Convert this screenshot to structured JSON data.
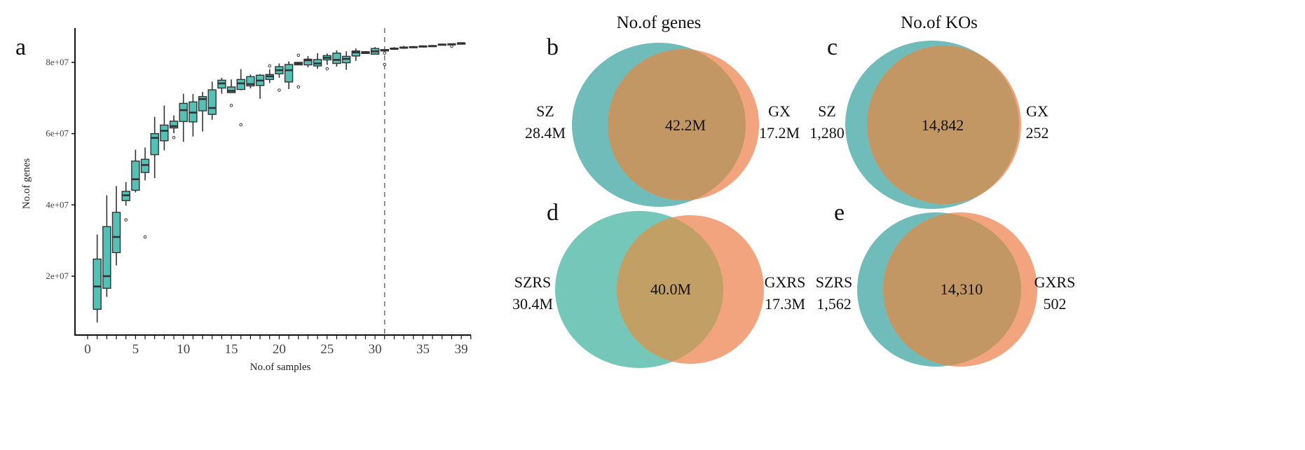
{
  "chart_data": [
    {
      "type": "boxplot",
      "panel_label": "a",
      "xlabel": "No.of samples",
      "ylabel": "No.of genes",
      "x_ticks": [
        0,
        5,
        10,
        15,
        20,
        25,
        30,
        35,
        39
      ],
      "y_ticks": [
        20000000.0,
        40000000.0,
        60000000.0,
        80000000.0
      ],
      "y_tick_labels": [
        "2e+07",
        "4e+07",
        "6e+07",
        "8e+07"
      ],
      "xlim": [
        -0.5,
        40
      ],
      "ylim": [
        0,
        89000000.0
      ],
      "vline_x": 31,
      "vline_style": "dashed",
      "box_color": "#55c1b6",
      "grid": false,
      "boxes": [
        {
          "x": 1,
          "low": 7000000.0,
          "q1": 10700000.0,
          "median": 17100000.0,
          "q3": 24800000.0,
          "high": 31700000.0,
          "outliers": []
        },
        {
          "x": 2,
          "low": 14200000.0,
          "q1": 16600000.0,
          "median": 20000000.0,
          "q3": 33900000.0,
          "high": 42700000.0,
          "outliers": []
        },
        {
          "x": 3,
          "low": 23000000.0,
          "q1": 26600000.0,
          "median": 31000000.0,
          "q3": 37900000.0,
          "high": 45300000.0,
          "outliers": []
        },
        {
          "x": 4,
          "low": 39800000.0,
          "q1": 41200000.0,
          "median": 42700000.0,
          "q3": 43800000.0,
          "high": 46400000.0,
          "outliers": [
            35800000.0
          ]
        },
        {
          "x": 5,
          "low": 43500000.0,
          "q1": 44100000.0,
          "median": 47200000.0,
          "q3": 52300000.0,
          "high": 55500000.0,
          "outliers": []
        },
        {
          "x": 6,
          "low": 46900000.0,
          "q1": 49100000.0,
          "median": 51200000.0,
          "q3": 52800000.0,
          "high": 56100000.0,
          "outliers": [
            31000000.0
          ]
        },
        {
          "x": 7,
          "low": 47500000.0,
          "q1": 54100000.0,
          "median": 58800000.0,
          "q3": 60000000.0,
          "high": 64700000.0,
          "outliers": []
        },
        {
          "x": 8,
          "low": 55300000.0,
          "q1": 58000000.0,
          "median": 60800000.0,
          "q3": 62400000.0,
          "high": 67900000.0,
          "outliers": []
        },
        {
          "x": 9,
          "low": 60100000.0,
          "q1": 61600000.0,
          "median": 62100000.0,
          "q3": 63500000.0,
          "high": 65100000.0,
          "outliers": [
            58900000.0
          ]
        },
        {
          "x": 10,
          "low": 57700000.0,
          "q1": 63400000.0,
          "median": 66600000.0,
          "q3": 68500000.0,
          "high": 71200000.0,
          "outliers": []
        },
        {
          "x": 11,
          "low": 59200000.0,
          "q1": 63300000.0,
          "median": 65900000.0,
          "q3": 68900000.0,
          "high": 71100000.0,
          "outliers": []
        },
        {
          "x": 12,
          "low": 60600000.0,
          "q1": 66400000.0,
          "median": 69700000.0,
          "q3": 70400000.0,
          "high": 71700000.0,
          "outliers": []
        },
        {
          "x": 13,
          "low": 63900000.0,
          "q1": 65400000.0,
          "median": 67200000.0,
          "q3": 72300000.0,
          "high": 74600000.0,
          "outliers": []
        },
        {
          "x": 14,
          "low": 71200000.0,
          "q1": 72800000.0,
          "median": 74100000.0,
          "q3": 75000000.0,
          "high": 75700000.0,
          "outliers": []
        },
        {
          "x": 15,
          "low": 71500000.0,
          "q1": 71500000.0,
          "median": 72000000.0,
          "q3": 73100000.0,
          "high": 75200000.0,
          "outliers": [
            67900000.0
          ]
        },
        {
          "x": 16,
          "low": 72200000.0,
          "q1": 72400000.0,
          "median": 74100000.0,
          "q3": 75200000.0,
          "high": 78100000.0,
          "outliers": [
            62500000.0
          ]
        },
        {
          "x": 17,
          "low": 72700000.0,
          "q1": 73400000.0,
          "median": 73900000.0,
          "q3": 76000000.0,
          "high": 76600000.0,
          "outliers": []
        },
        {
          "x": 18,
          "low": 69800000.0,
          "q1": 73500000.0,
          "median": 74900000.0,
          "q3": 76400000.0,
          "high": 76700000.0,
          "outliers": []
        },
        {
          "x": 19,
          "low": 74200000.0,
          "q1": 75200000.0,
          "median": 76100000.0,
          "q3": 76600000.0,
          "high": 78100000.0,
          "outliers": [
            79000000.0
          ]
        },
        {
          "x": 20,
          "low": 75700000.0,
          "q1": 76800000.0,
          "median": 77800000.0,
          "q3": 78800000.0,
          "high": 79700000.0,
          "outliers": [
            72200000.0
          ]
        },
        {
          "x": 21,
          "low": 72500000.0,
          "q1": 74500000.0,
          "median": 77800000.0,
          "q3": 79400000.0,
          "high": 80300000.0,
          "outliers": []
        },
        {
          "x": 22,
          "low": 79300000.0,
          "q1": 79300000.0,
          "median": 79700000.0,
          "q3": 80000000.0,
          "high": 80000000.0,
          "outliers": [
            82000000.0,
            73100000.0
          ]
        },
        {
          "x": 23,
          "low": 78600000.0,
          "q1": 79300000.0,
          "median": 80600000.0,
          "q3": 80900000.0,
          "high": 81800000.0,
          "outliers": []
        },
        {
          "x": 24,
          "low": 78200000.0,
          "q1": 79000000.0,
          "median": 79700000.0,
          "q3": 80800000.0,
          "high": 82600000.0,
          "outliers": []
        },
        {
          "x": 25,
          "low": 79300000.0,
          "q1": 80700000.0,
          "median": 81300000.0,
          "q3": 81900000.0,
          "high": 82500000.0,
          "outliers": [
            78200000.0
          ]
        },
        {
          "x": 26,
          "low": 78800000.0,
          "q1": 79700000.0,
          "median": 80700000.0,
          "q3": 82600000.0,
          "high": 83400000.0,
          "outliers": []
        },
        {
          "x": 27,
          "low": 77900000.0,
          "q1": 79900000.0,
          "median": 81000000.0,
          "q3": 81700000.0,
          "high": 83100000.0,
          "outliers": []
        },
        {
          "x": 28,
          "low": 80400000.0,
          "q1": 81800000.0,
          "median": 82800000.0,
          "q3": 83200000.0,
          "high": 83900000.0,
          "outliers": []
        },
        {
          "x": 29,
          "low": 82400000.0,
          "q1": 82500000.0,
          "median": 82800000.0,
          "q3": 83000000.0,
          "high": 83100000.0,
          "outliers": []
        },
        {
          "x": 30,
          "low": 82200000.0,
          "q1": 82300000.0,
          "median": 83100000.0,
          "q3": 83900000.0,
          "high": 84300000.0,
          "outliers": []
        },
        {
          "x": 31,
          "low": 83200000.0,
          "q1": 83200000.0,
          "median": 83400000.0,
          "q3": 83600000.0,
          "high": 83600000.0,
          "outliers": [
            82600000.0,
            79400000.0
          ]
        },
        {
          "x": 32,
          "low": 83500000.0,
          "q1": 83700000.0,
          "median": 83800000.0,
          "q3": 84000000.0,
          "high": 84300000.0,
          "outliers": []
        },
        {
          "x": 33,
          "low": 83800000.0,
          "q1": 84000000.0,
          "median": 84100000.0,
          "q3": 84300000.0,
          "high": 84600000.0,
          "outliers": []
        },
        {
          "x": 34,
          "low": 84100000.0,
          "q1": 84200000.0,
          "median": 84300000.0,
          "q3": 84400000.0,
          "high": 84600000.0,
          "outliers": []
        },
        {
          "x": 35,
          "low": 84200000.0,
          "q1": 84400000.0,
          "median": 84500000.0,
          "q3": 84600000.0,
          "high": 84800000.0,
          "outliers": []
        },
        {
          "x": 36,
          "low": 84400000.0,
          "q1": 84500000.0,
          "median": 84600000.0,
          "q3": 84700000.0,
          "high": 84900000.0,
          "outliers": []
        },
        {
          "x": 37,
          "low": 84800000.0,
          "q1": 84900000.0,
          "median": 85000000.0,
          "q3": 85100000.0,
          "high": 85200000.0,
          "outliers": []
        },
        {
          "x": 38,
          "low": 85000000.0,
          "q1": 85100000.0,
          "median": 85100000.0,
          "q3": 85200000.0,
          "high": 85300000.0,
          "outliers": [
            84500000.0
          ]
        },
        {
          "x": 39,
          "low": 85200000.0,
          "q1": 85300000.0,
          "median": 85400000.0,
          "q3": 85400000.0,
          "high": 85500000.0,
          "outliers": []
        }
      ]
    },
    {
      "type": "venn",
      "panel_label": "b",
      "title": "No.of genes",
      "left": {
        "name": "SZ",
        "value": "28.4M"
      },
      "overlap": "42.2M",
      "right": {
        "name": "GX",
        "value": "17.2M"
      }
    },
    {
      "type": "venn",
      "panel_label": "c",
      "title": "No.of KOs",
      "left": {
        "name": "SZ",
        "value": "1,280"
      },
      "overlap": "14,842",
      "right": {
        "name": "GX",
        "value": "252"
      }
    },
    {
      "type": "venn",
      "panel_label": "d",
      "left": {
        "name": "SZRS",
        "value": "30.4M"
      },
      "overlap": "40.0M",
      "right": {
        "name": "GXRS",
        "value": "17.3M"
      }
    },
    {
      "type": "venn",
      "panel_label": "e",
      "left": {
        "name": "SZRS",
        "value": "1,562"
      },
      "overlap": "14,310",
      "right": {
        "name": "GXRS",
        "value": "502"
      }
    }
  ],
  "colors": {
    "left_set": "#6fbcba",
    "left_set_alt": "#74c7b9",
    "right_set": "#f2a47f",
    "overlap": "#c29764",
    "box_fill": "#55c1b6",
    "box_line": "#333333"
  }
}
